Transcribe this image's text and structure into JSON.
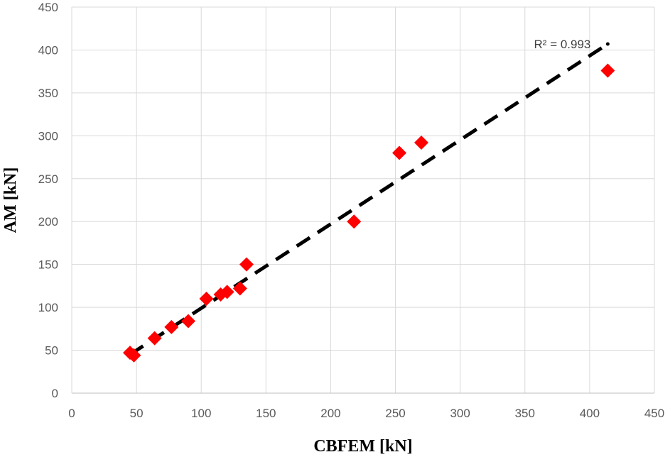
{
  "chart_data": {
    "type": "scatter",
    "xlabel": "CBFEM [kN]",
    "ylabel": "AM [kN]",
    "xlim": [
      0,
      450
    ],
    "ylim": [
      0,
      450
    ],
    "xticks": [
      0,
      50,
      100,
      150,
      200,
      250,
      300,
      350,
      400,
      450
    ],
    "yticks": [
      0,
      50,
      100,
      150,
      200,
      250,
      300,
      350,
      400,
      450
    ],
    "grid": true,
    "marker": "diamond",
    "marker_color": "#ff0000",
    "series": [
      {
        "points": [
          [
            45,
            47
          ],
          [
            48,
            44
          ],
          [
            64,
            64
          ],
          [
            77,
            77
          ],
          [
            90,
            84
          ],
          [
            104,
            110
          ],
          [
            115,
            115
          ],
          [
            120,
            118
          ],
          [
            130,
            122
          ],
          [
            135,
            150
          ],
          [
            218,
            200
          ],
          [
            253,
            280
          ],
          [
            270,
            292
          ],
          [
            414,
            376
          ]
        ]
      }
    ],
    "trendline": {
      "style": "dashed",
      "color": "#000000",
      "x": [
        45,
        414
      ],
      "y": [
        45,
        407
      ]
    },
    "annotation": "R² = 0.993"
  }
}
